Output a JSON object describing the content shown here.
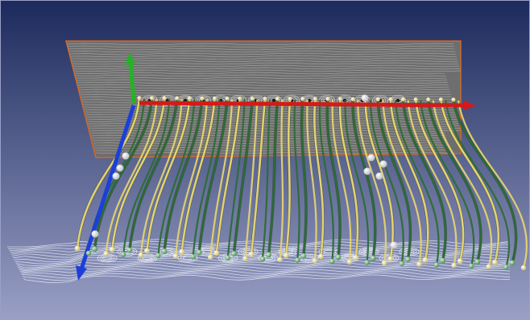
{
  "scene": {
    "kind": "3d-flow-visualization",
    "background_top": "#1c2a5c",
    "background_bottom": "#9aa0c6",
    "back_plane": {
      "fill": "#6e6e6e",
      "stripe_color": "#d8d8d8",
      "border_color": "#d0682a"
    },
    "floor_plane": {
      "stripe_color": "#e8ecf6"
    },
    "streamlines": {
      "colors": [
        "#e3d36f",
        "#2d6b35"
      ],
      "seed_sphere_yellow": "#f2e9a4",
      "seed_sphere_green": "#7fbf85",
      "probe_sphere": "#f4f4f4"
    },
    "axes": [
      {
        "name": "x-axis",
        "color": "#d41a1a"
      },
      {
        "name": "y-axis",
        "color": "#26b226"
      },
      {
        "name": "z-axis",
        "color": "#1d3fd9"
      }
    ]
  }
}
